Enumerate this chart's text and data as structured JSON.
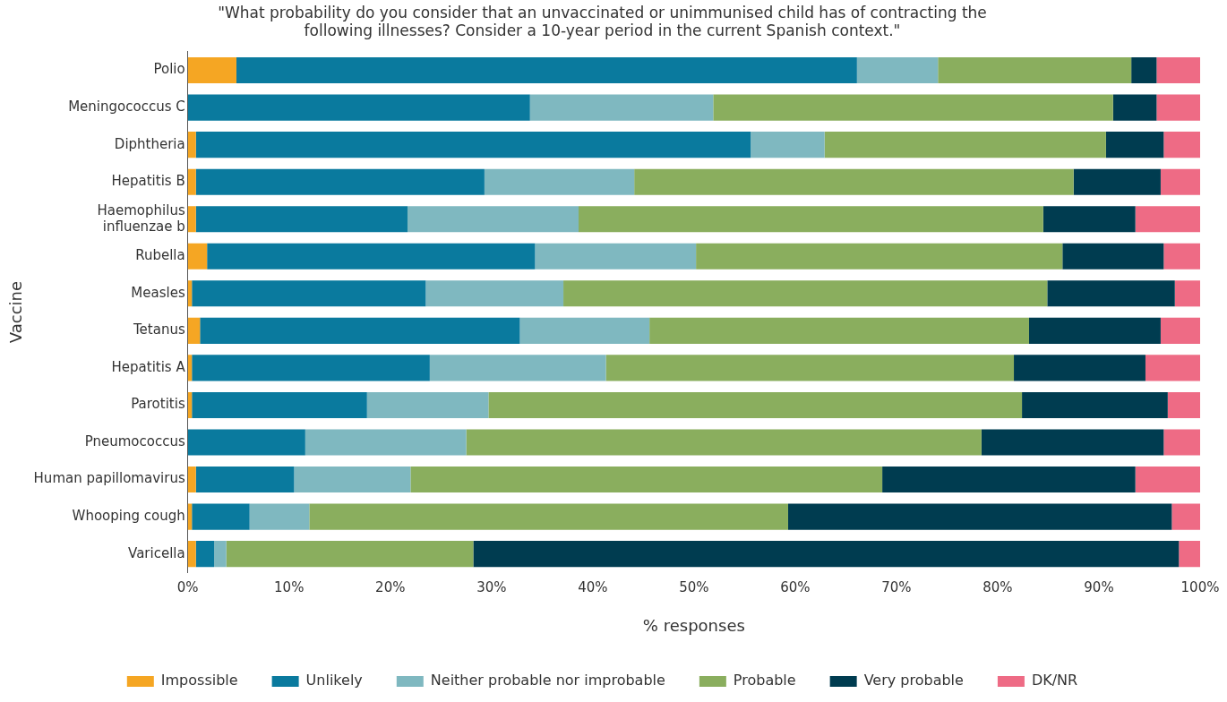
{
  "chart_data": {
    "type": "bar",
    "orientation": "horizontal",
    "stacked": true,
    "title": "\"What probability do you consider that an unvaccinated or unimmunised child has of contracting the following illnesses? Consider a 10-year period in the current Spanish context.\"",
    "xlabel": "% responses",
    "ylabel": "Vaccine",
    "categories": [
      "Polio",
      "Meningococcus C",
      "Diphtheria",
      "Hepatitis B",
      "Haemophilus influenzae b",
      "Rubella",
      "Measles",
      "Tetanus",
      "Hepatitis A",
      "Parotitis",
      "Pneumococcus",
      "Human papillomavirus",
      "Whooping cough",
      "Varicella"
    ],
    "series": [
      {
        "name": "Impossible",
        "color": "#f5a623",
        "values": [
          4.8,
          0,
          0.8,
          0.8,
          0.8,
          1.9,
          0.4,
          1.2,
          0.4,
          0.4,
          0,
          0.8,
          0.4,
          0.8
        ]
      },
      {
        "name": "Unlikely",
        "color": "#0a7a9e",
        "values": [
          61.3,
          33.8,
          54.8,
          28.5,
          20.9,
          32.4,
          23.1,
          31.6,
          23.5,
          17.3,
          11.6,
          9.7,
          5.7,
          1.8
        ]
      },
      {
        "name": "Neither probable nor improbable",
        "color": "#7fb8c0",
        "values": [
          8.0,
          18.1,
          7.3,
          14.8,
          16.9,
          15.9,
          13.6,
          12.8,
          17.4,
          12.0,
          15.9,
          11.5,
          5.9,
          1.2
        ]
      },
      {
        "name": "Probable",
        "color": "#8aae5e",
        "values": [
          19.1,
          39.5,
          27.8,
          43.4,
          45.9,
          36.2,
          47.8,
          37.5,
          40.3,
          52.7,
          50.9,
          46.6,
          47.3,
          24.4
        ]
      },
      {
        "name": "Very probable",
        "color": "#003c50",
        "values": [
          2.5,
          4.3,
          5.7,
          8.6,
          9.1,
          10.0,
          12.6,
          13.0,
          13.0,
          14.4,
          18.0,
          25.0,
          37.9,
          69.7
        ]
      },
      {
        "name": "DK/NR",
        "color": "#ee6b85",
        "values": [
          4.3,
          4.3,
          3.6,
          3.9,
          6.4,
          3.6,
          2.5,
          3.9,
          5.4,
          3.2,
          3.6,
          6.4,
          2.8,
          2.1
        ]
      }
    ],
    "xlim": [
      0,
      100
    ],
    "xticks": [
      {
        "value": 0,
        "label": "0%"
      },
      {
        "value": 10,
        "label": "10%"
      },
      {
        "value": 20,
        "label": "20%"
      },
      {
        "value": 30,
        "label": "30%"
      },
      {
        "value": 40,
        "label": "40%"
      },
      {
        "value": 50,
        "label": "50%"
      },
      {
        "value": 60,
        "label": "60%"
      },
      {
        "value": 70,
        "label": "70%"
      },
      {
        "value": 80,
        "label": "80%"
      },
      {
        "value": 90,
        "label": "90%"
      },
      {
        "value": 100,
        "label": "100%"
      }
    ],
    "grid": false,
    "legend": "bottom"
  }
}
